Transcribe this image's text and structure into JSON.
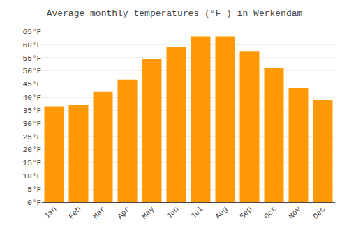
{
  "chart_data": {
    "type": "bar",
    "title": "Average monthly temperatures (°F ) in Werkendam",
    "categories": [
      "Jan",
      "Feb",
      "Mar",
      "Apr",
      "May",
      "Jun",
      "Jul",
      "Aug",
      "Sep",
      "Oct",
      "Nov",
      "Dec"
    ],
    "values": [
      36.5,
      37.0,
      42.0,
      46.5,
      54.5,
      59.0,
      63.0,
      63.0,
      57.5,
      51.0,
      43.5,
      39.0
    ],
    "color": "#FF9905",
    "ylim": [
      0,
      65
    ],
    "yticks": [
      {
        "value": 0,
        "label": "0°F"
      },
      {
        "value": 5,
        "label": "5°F"
      },
      {
        "value": 10,
        "label": "10°F"
      },
      {
        "value": 15,
        "label": "15°F"
      },
      {
        "value": 20,
        "label": "20°F"
      },
      {
        "value": 25,
        "label": "25°F"
      },
      {
        "value": 30,
        "label": "30°F"
      },
      {
        "value": 35,
        "label": "35°F"
      },
      {
        "value": 40,
        "label": "40°F"
      },
      {
        "value": 45,
        "label": "45°F"
      },
      {
        "value": 50,
        "label": "50°F"
      },
      {
        "value": 55,
        "label": "55°F"
      },
      {
        "value": 60,
        "label": "60°F"
      },
      {
        "value": 65,
        "label": "65°F"
      }
    ],
    "grid": true
  }
}
